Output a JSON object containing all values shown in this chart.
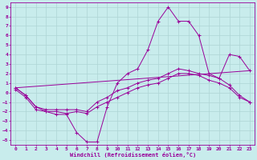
{
  "background_color": "#c8ecec",
  "grid_color": "#aed4d4",
  "line_color": "#990099",
  "xlabel": "Windchill (Refroidissement éolien,°C)",
  "xlim": [
    -0.5,
    23.5
  ],
  "ylim": [
    -5.5,
    9.5
  ],
  "xticks": [
    0,
    1,
    2,
    3,
    4,
    5,
    6,
    7,
    8,
    9,
    10,
    11,
    12,
    13,
    14,
    15,
    16,
    17,
    18,
    19,
    20,
    21,
    22,
    23
  ],
  "yticks": [
    -5,
    -4,
    -3,
    -2,
    -1,
    0,
    1,
    2,
    3,
    4,
    5,
    6,
    7,
    8,
    9
  ],
  "series": [
    {
      "x": [
        0,
        1,
        2,
        3,
        4,
        5,
        6,
        7,
        8,
        9,
        10,
        11,
        12,
        13,
        14,
        15,
        16,
        17,
        18,
        19,
        20,
        21,
        22,
        23
      ],
      "y": [
        0.5,
        -0.3,
        -1.5,
        -2.0,
        -2.3,
        -2.3,
        -4.2,
        -5.2,
        -5.2,
        -1.5,
        1.0,
        2.0,
        2.5,
        4.5,
        7.5,
        9.0,
        7.5,
        7.5,
        6.0,
        2.0,
        1.5,
        4.0,
        3.8,
        2.3
      ]
    },
    {
      "x": [
        0,
        1,
        2,
        3,
        4,
        5,
        6,
        7,
        8,
        9,
        10,
        11,
        12,
        13,
        14,
        15,
        16,
        17,
        18,
        19,
        20,
        21,
        22,
        23
      ],
      "y": [
        0.5,
        -0.3,
        -1.5,
        -1.8,
        -1.8,
        -1.8,
        -1.8,
        -2.0,
        -1.0,
        -0.5,
        0.2,
        0.5,
        1.0,
        1.3,
        1.5,
        2.0,
        2.5,
        2.3,
        2.0,
        1.8,
        1.5,
        0.8,
        -0.3,
        -1.0
      ]
    },
    {
      "x": [
        0,
        1,
        2,
        3,
        4,
        5,
        6,
        7,
        8,
        9,
        10,
        11,
        12,
        13,
        14,
        15,
        16,
        17,
        18,
        19,
        20,
        21,
        22,
        23
      ],
      "y": [
        0.3,
        -0.5,
        -1.8,
        -2.0,
        -2.0,
        -2.2,
        -2.0,
        -2.2,
        -1.5,
        -1.0,
        -0.5,
        0.0,
        0.5,
        0.8,
        1.0,
        1.5,
        2.0,
        2.0,
        1.8,
        1.3,
        1.0,
        0.5,
        -0.5,
        -1.0
      ]
    },
    {
      "x": [
        0,
        23
      ],
      "y": [
        0.5,
        2.3
      ]
    }
  ]
}
